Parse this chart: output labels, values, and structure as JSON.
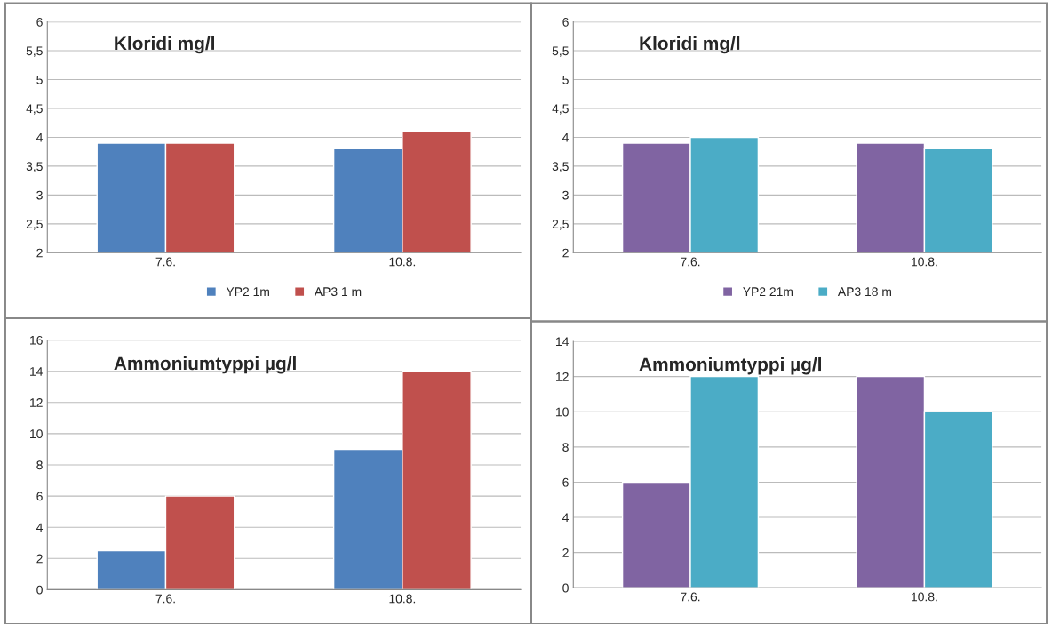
{
  "chart_data": [
    {
      "type": "bar",
      "title": "Kloridi mg/l",
      "categories": [
        "7.6.",
        "10.8."
      ],
      "series": [
        {
          "name": "YP2 1m",
          "color": "#4f81bd",
          "values": [
            3.9,
            3.8
          ]
        },
        {
          "name": "AP3 1 m",
          "color": "#c0504d",
          "values": [
            3.9,
            4.1
          ]
        }
      ],
      "ylim": [
        2,
        6
      ],
      "yticks": [
        2,
        {
          "value": 2.5,
          "label": "2,5"
        },
        3,
        {
          "value": 3.5,
          "label": "3,5"
        },
        4,
        {
          "value": 4.5,
          "label": "4,5"
        },
        5,
        {
          "value": 5.5,
          "label": "5,5"
        },
        6
      ],
      "grid": "y",
      "legend": "bottom"
    },
    {
      "type": "bar",
      "title": "Kloridi mg/l",
      "categories": [
        "7.6.",
        "10.8."
      ],
      "series": [
        {
          "name": "YP2 21m",
          "color": "#8064a2",
          "values": [
            3.9,
            3.9
          ]
        },
        {
          "name": "AP3 18 m",
          "color": "#4bacc6",
          "values": [
            4.0,
            3.8
          ]
        }
      ],
      "ylim": [
        2,
        6
      ],
      "yticks": [
        2,
        {
          "value": 2.5,
          "label": "2,5"
        },
        3,
        {
          "value": 3.5,
          "label": "3,5"
        },
        4,
        {
          "value": 4.5,
          "label": "4,5"
        },
        5,
        {
          "value": 5.5,
          "label": "5,5"
        },
        6
      ],
      "grid": "y",
      "legend": "bottom"
    },
    {
      "type": "bar",
      "title": "Ammoniumtyppi µg/l",
      "categories": [
        "7.6.",
        "10.8."
      ],
      "series": [
        {
          "color": "#4f81bd",
          "values": [
            2.5,
            9
          ]
        },
        {
          "color": "#c0504d",
          "values": [
            6,
            14
          ]
        }
      ],
      "ylim": [
        0,
        16
      ],
      "yticks": [
        0,
        2,
        4,
        6,
        8,
        10,
        12,
        14,
        16
      ],
      "grid": "y"
    },
    {
      "type": "bar",
      "title": "Ammoniumtyppi µg/l",
      "categories": [
        "7.6.",
        "10.8."
      ],
      "series": [
        {
          "color": "#8064a2",
          "values": [
            6,
            12
          ]
        },
        {
          "color": "#4bacc6",
          "values": [
            12,
            10
          ]
        }
      ],
      "ylim": [
        0,
        14
      ],
      "yticks": [
        0,
        2,
        4,
        6,
        8,
        10,
        12,
        14
      ],
      "grid": "y"
    }
  ]
}
